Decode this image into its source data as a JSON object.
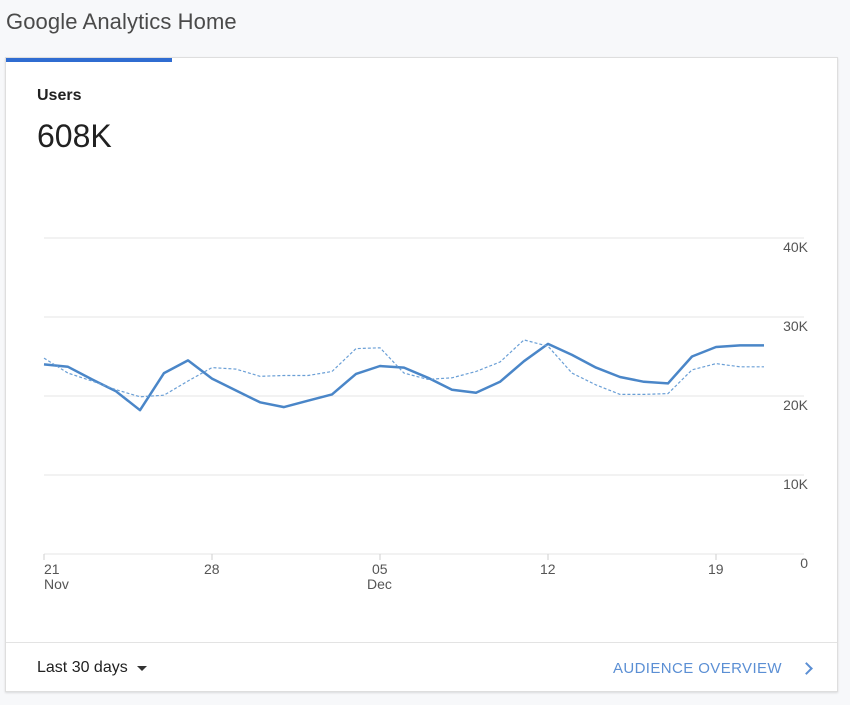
{
  "page": {
    "title": "Google Analytics Home"
  },
  "card": {
    "metric_label": "Users",
    "metric_value": "608K",
    "date_range_label": "Last 30 days",
    "overview_link_label": "AUDIENCE OVERVIEW"
  },
  "colors": {
    "accent": "#2f6cd1",
    "current_series": "#4a86c8",
    "previous_series": "#6a9fd6",
    "link": "#5b8fd4"
  },
  "icons": {
    "date_range_caret": "caret-down-icon",
    "overview_chevron": "chevron-right-icon"
  },
  "chart_data": {
    "type": "line",
    "title": "",
    "xlabel": "",
    "ylabel": "",
    "ylim": [
      0,
      40000
    ],
    "y_ticks": [
      {
        "value": 40000,
        "label": "40K"
      },
      {
        "value": 30000,
        "label": "30K"
      },
      {
        "value": 20000,
        "label": "20K"
      },
      {
        "value": 10000,
        "label": "10K"
      },
      {
        "value": 0,
        "label": "0"
      }
    ],
    "x_ticks": [
      {
        "index": 0,
        "label": "21",
        "sublabel": "Nov"
      },
      {
        "index": 7,
        "label": "28",
        "sublabel": ""
      },
      {
        "index": 14,
        "label": "05",
        "sublabel": "Dec"
      },
      {
        "index": 21,
        "label": "12",
        "sublabel": ""
      },
      {
        "index": 28,
        "label": "19",
        "sublabel": ""
      }
    ],
    "x": [
      "Nov 21",
      "Nov 22",
      "Nov 23",
      "Nov 24",
      "Nov 25",
      "Nov 26",
      "Nov 27",
      "Nov 28",
      "Nov 29",
      "Nov 30",
      "Dec 1",
      "Dec 2",
      "Dec 3",
      "Dec 4",
      "Dec 5",
      "Dec 6",
      "Dec 7",
      "Dec 8",
      "Dec 9",
      "Dec 10",
      "Dec 11",
      "Dec 12",
      "Dec 13",
      "Dec 14",
      "Dec 15",
      "Dec 16",
      "Dec 17",
      "Dec 18",
      "Dec 19",
      "Dec 20",
      "Dec 21"
    ],
    "grid": true,
    "series": [
      {
        "style": "solid",
        "values": [
          24000,
          23700,
          22100,
          20600,
          18200,
          22900,
          24500,
          22200,
          20700,
          19200,
          18600,
          19400,
          20200,
          22800,
          23800,
          23600,
          22300,
          20800,
          20400,
          21800,
          24400,
          26600,
          25200,
          23600,
          22400,
          21800,
          21600,
          25000,
          26200,
          26400,
          26400
        ]
      },
      {
        "style": "dashed",
        "values": [
          24800,
          22900,
          21900,
          20800,
          19900,
          20100,
          21900,
          23600,
          23400,
          22500,
          22600,
          22600,
          23100,
          26000,
          26100,
          22900,
          22100,
          22300,
          23100,
          24300,
          27100,
          26300,
          22900,
          21400,
          20200,
          20200,
          20300,
          23300,
          24100,
          23700,
          23700
        ]
      }
    ]
  }
}
